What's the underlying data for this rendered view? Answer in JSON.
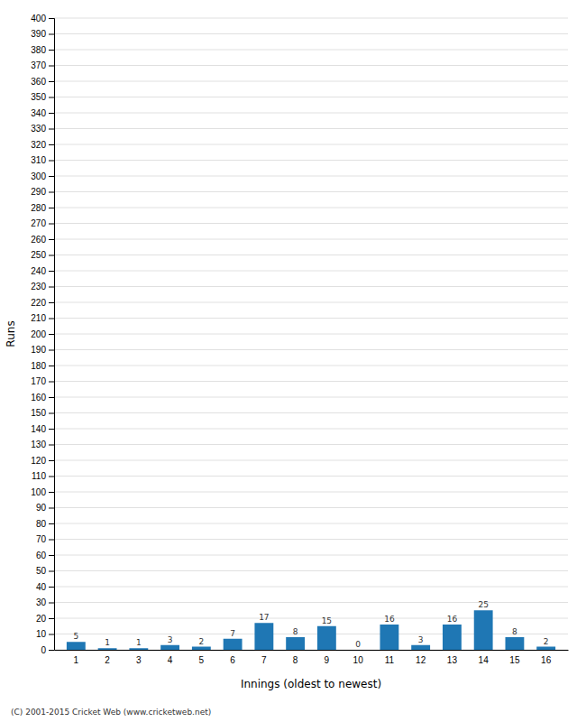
{
  "chart_data": {
    "type": "bar",
    "categories": [
      "1",
      "2",
      "3",
      "4",
      "5",
      "6",
      "7",
      "8",
      "9",
      "10",
      "11",
      "12",
      "13",
      "14",
      "15",
      "16"
    ],
    "values": [
      5,
      1,
      1,
      3,
      2,
      7,
      17,
      8,
      15,
      0,
      16,
      3,
      16,
      25,
      8,
      2
    ],
    "x_label": "Innings (oldest to newest)",
    "y_label": "Runs",
    "ylim": [
      0,
      400
    ],
    "yticks": [
      0,
      10,
      20,
      30,
      40,
      50,
      60,
      70,
      80,
      90,
      100,
      110,
      120,
      130,
      140,
      150,
      160,
      170,
      180,
      190,
      200,
      210,
      220,
      230,
      240,
      250,
      260,
      270,
      280,
      290,
      300,
      310,
      320,
      330,
      340,
      350,
      360,
      370,
      380,
      390,
      400
    ],
    "grid": true,
    "data_labels": true,
    "annotations": [
      "(C) 2001-2015 Cricket Web (www.cricketweb.net)"
    ]
  }
}
